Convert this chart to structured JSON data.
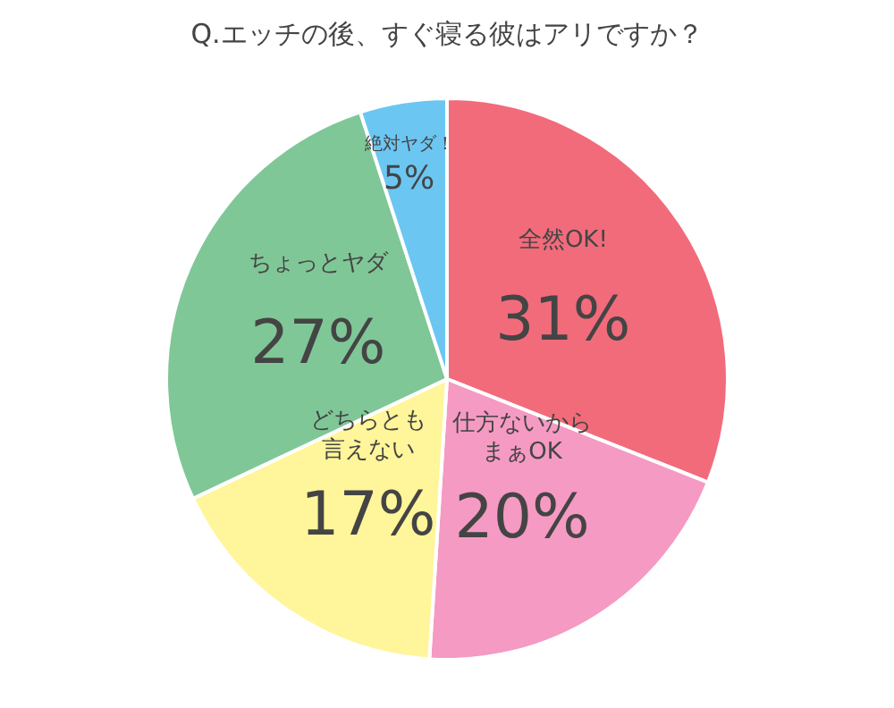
{
  "chart_data": {
    "type": "pie",
    "title": "Q.エッチの後、すぐ寝る彼はアリですか？",
    "categories": [
      "全然OK!",
      "仕方ないからまぁOK",
      "どちらとも言えない",
      "ちょっとヤダ",
      "絶対ヤダ！"
    ],
    "values": [
      31,
      20,
      17,
      27,
      5
    ],
    "value_labels": [
      "31%",
      "20%",
      "17%",
      "27%",
      "5%"
    ],
    "colors": [
      "#f26b7b",
      "#f59ac3",
      "#fff59a",
      "#7fc797",
      "#6cc6f2"
    ]
  }
}
